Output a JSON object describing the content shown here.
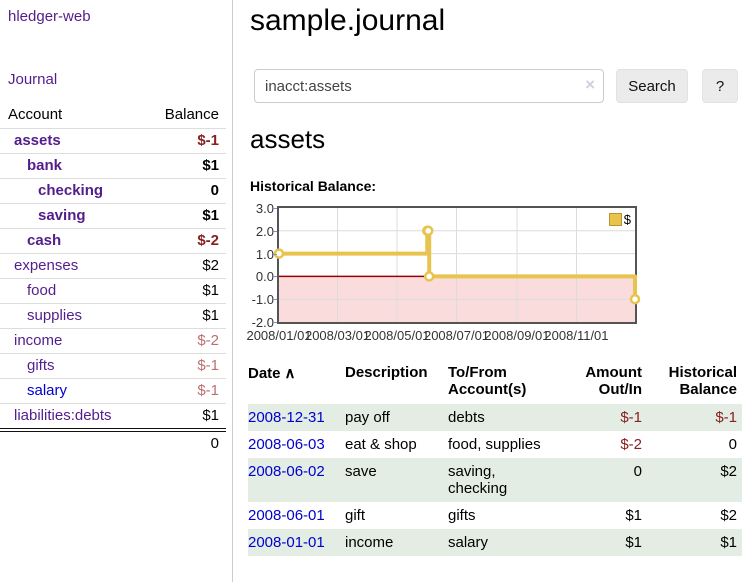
{
  "app": {
    "brand": "hledger-web",
    "nav_journal": "Journal"
  },
  "sidebar": {
    "header": {
      "account": "Account",
      "balance": "Balance"
    },
    "accounts": [
      {
        "name": "assets",
        "depth": 1,
        "bold": true,
        "name_color": "purple",
        "balance": "$-1",
        "balance_color": "neg-dark"
      },
      {
        "name": "bank",
        "depth": 2,
        "bold": true,
        "name_color": "purple",
        "balance": "$1",
        "balance_color": "normal"
      },
      {
        "name": "checking",
        "depth": 3,
        "bold": true,
        "name_color": "purple",
        "balance": "0",
        "balance_color": "normal"
      },
      {
        "name": "saving",
        "depth": 3,
        "bold": true,
        "name_color": "purple",
        "balance": "$1",
        "balance_color": "normal"
      },
      {
        "name": "cash",
        "depth": 2,
        "bold": true,
        "name_color": "purple",
        "balance": "$-2",
        "balance_color": "neg-dark"
      },
      {
        "name": "expenses",
        "depth": 1,
        "bold": false,
        "name_color": "purple",
        "balance": "$2",
        "balance_color": "normal"
      },
      {
        "name": "food",
        "depth": 2,
        "bold": false,
        "name_color": "purple",
        "balance": "$1",
        "balance_color": "normal"
      },
      {
        "name": "supplies",
        "depth": 2,
        "bold": false,
        "name_color": "purple",
        "balance": "$1",
        "balance_color": "normal"
      },
      {
        "name": "income",
        "depth": 1,
        "bold": false,
        "name_color": "purple",
        "balance": "$-2",
        "balance_color": "neg-soft"
      },
      {
        "name": "gifts",
        "depth": 2,
        "bold": false,
        "name_color": "purple",
        "balance": "$-1",
        "balance_color": "neg-soft"
      },
      {
        "name": "salary",
        "depth": 2,
        "bold": false,
        "name_color": "blue",
        "balance": "$-1",
        "balance_color": "neg-soft"
      },
      {
        "name": "liabilities:debts",
        "depth": 1,
        "bold": false,
        "name_color": "purple",
        "balance": "$1",
        "balance_color": "normal"
      }
    ],
    "total": "0"
  },
  "main": {
    "title": "sample.journal",
    "search": {
      "value": "inacct:assets",
      "clear_icon": "×",
      "button": "Search",
      "help_button": "?"
    },
    "account_heading": "assets",
    "chart_label": "Historical Balance:"
  },
  "chart_data": {
    "type": "line",
    "style": "step-after",
    "title": "Historical Balance",
    "xlim": [
      "2008-01-01",
      "2008-12-31"
    ],
    "ylim": [
      -2,
      3
    ],
    "x_ticks": [
      "2008/01/01",
      "2008/03/01",
      "2008/05/01",
      "2008/07/01",
      "2008/09/01",
      "2008/11/01"
    ],
    "y_ticks": [
      3.0,
      2.0,
      1.0,
      0.0,
      -1.0,
      -2.0
    ],
    "series": [
      {
        "name": "$",
        "color": "#e8c44f",
        "points": [
          [
            "2008-01-01",
            1
          ],
          [
            "2008-06-01",
            2
          ],
          [
            "2008-06-02",
            2
          ],
          [
            "2008-06-03",
            0
          ],
          [
            "2008-12-31",
            -1
          ]
        ]
      }
    ],
    "legend_position": "top-right",
    "grid": true,
    "grid_color": "#dcdcdc",
    "zero_line_color": "#990000",
    "negative_fill": "#fbdcdc"
  },
  "register_table": {
    "headers": {
      "date": "Date",
      "sort_indicator": "∧",
      "description": "Description",
      "accounts": "To/From Account(s)",
      "amount": "Amount Out/In",
      "balance": "Historical Balance"
    },
    "rows": [
      {
        "date": "2008-12-31",
        "description": "pay off",
        "accounts": "debts",
        "amount": "$-1",
        "amount_color": "neg-dark",
        "balance": "$-1",
        "balance_color": "neg-dark",
        "shaded": true
      },
      {
        "date": "2008-06-03",
        "description": "eat & shop",
        "accounts": "food, supplies",
        "amount": "$-2",
        "amount_color": "neg-dark",
        "balance": "0",
        "balance_color": "normal",
        "shaded": false
      },
      {
        "date": "2008-06-02",
        "description": "save",
        "accounts": "saving, checking",
        "amount": "0",
        "amount_color": "normal",
        "balance": "$2",
        "balance_color": "normal",
        "shaded": true
      },
      {
        "date": "2008-06-01",
        "description": "gift",
        "accounts": "gifts",
        "amount": "$1",
        "amount_color": "normal",
        "balance": "$2",
        "balance_color": "normal",
        "shaded": false
      },
      {
        "date": "2008-01-01",
        "description": "income",
        "accounts": "salary",
        "amount": "$1",
        "amount_color": "normal",
        "balance": "$1",
        "balance_color": "normal",
        "shaded": true
      }
    ]
  },
  "colors": {
    "purple_link": "#541d8c",
    "blue_link": "#0000d0",
    "negative_dark": "#87201f",
    "negative_soft": "#bb6f6f",
    "shaded_row": "#e3ede3",
    "series_gold": "#e8c44f",
    "chart_negative_fill": "#fbdcdc",
    "zero_line": "#990000"
  }
}
